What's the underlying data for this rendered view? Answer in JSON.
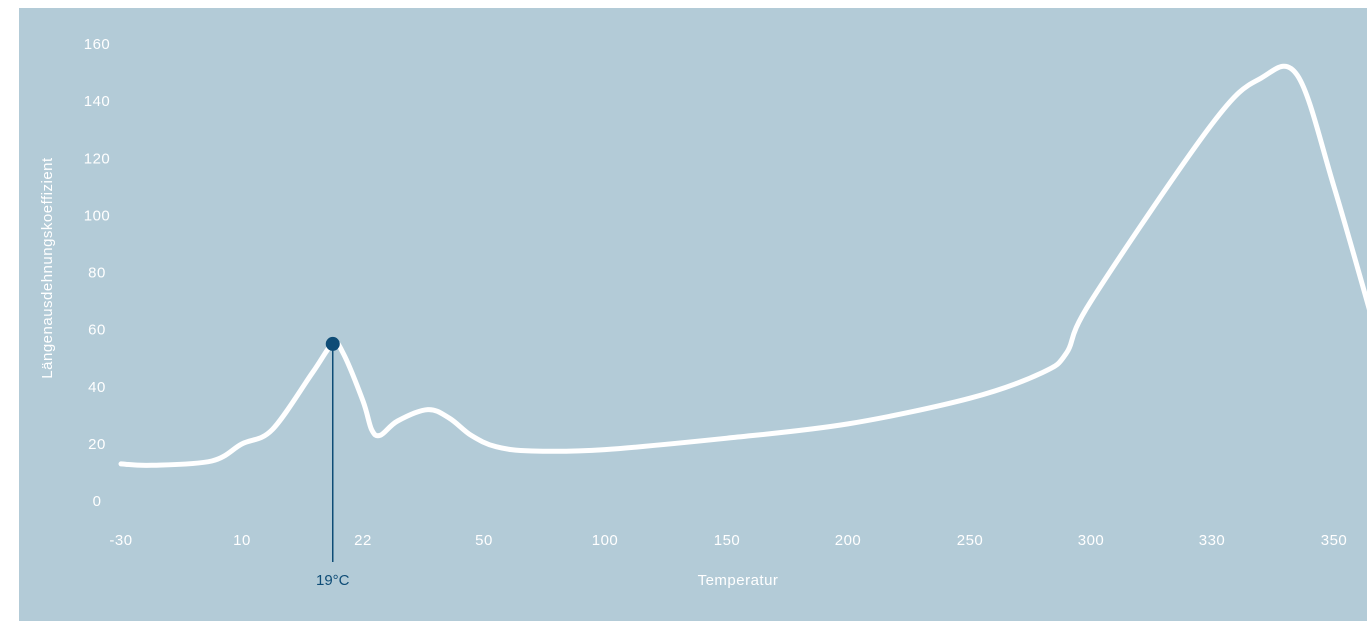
{
  "colors": {
    "background": "#b3cbd7",
    "curve": "#ffffff",
    "text": "#ffffff",
    "marker": "#0e4c76"
  },
  "chart_data": {
    "type": "line",
    "title": "",
    "xlabel": "Temperatur",
    "ylabel": "Längenausdehnungskoeffizient",
    "x_scale": "categorical (unevenly spaced ticks)",
    "x_ticks": [
      -30,
      10,
      22,
      50,
      100,
      150,
      200,
      250,
      300,
      330,
      350
    ],
    "x_tick_labels": [
      "-30",
      "10",
      "22",
      "50",
      "100",
      "150",
      "200",
      "250",
      "300",
      "330",
      "350"
    ],
    "y_ticks": [
      0,
      20,
      40,
      60,
      80,
      100,
      120,
      140,
      160
    ],
    "y_tick_labels": [
      "0",
      "20",
      "40",
      "60",
      "80",
      "100",
      "120",
      "140",
      "160"
    ],
    "ylim": [
      0,
      160
    ],
    "grid": false,
    "series": [
      {
        "points": [
          {
            "x": -30,
            "y": 13
          },
          {
            "x": -20,
            "y": 12.5
          },
          {
            "x": 0,
            "y": 14
          },
          {
            "x": 10,
            "y": 20
          },
          {
            "x": 13,
            "y": 25
          },
          {
            "x": 17,
            "y": 45
          },
          {
            "x": 19,
            "y": 55
          },
          {
            "x": 20,
            "y": 52
          },
          {
            "x": 22,
            "y": 35
          },
          {
            "x": 24,
            "y": 25
          },
          {
            "x": 26,
            "y": 23
          },
          {
            "x": 30,
            "y": 28
          },
          {
            "x": 37,
            "y": 32
          },
          {
            "x": 42,
            "y": 29
          },
          {
            "x": 47,
            "y": 23
          },
          {
            "x": 55,
            "y": 19
          },
          {
            "x": 70,
            "y": 17.5
          },
          {
            "x": 100,
            "y": 18
          },
          {
            "x": 150,
            "y": 22
          },
          {
            "x": 200,
            "y": 27
          },
          {
            "x": 250,
            "y": 36
          },
          {
            "x": 280,
            "y": 45
          },
          {
            "x": 290,
            "y": 52
          },
          {
            "x": 300,
            "y": 70
          },
          {
            "x": 330,
            "y": 132
          },
          {
            "x": 338,
            "y": 148
          },
          {
            "x": 344,
            "y": 149
          },
          {
            "x": 350,
            "y": 110
          },
          {
            "x": 357,
            "y": 58
          }
        ]
      }
    ],
    "marker": {
      "x": 19,
      "y": 55,
      "label": "19°C"
    }
  }
}
